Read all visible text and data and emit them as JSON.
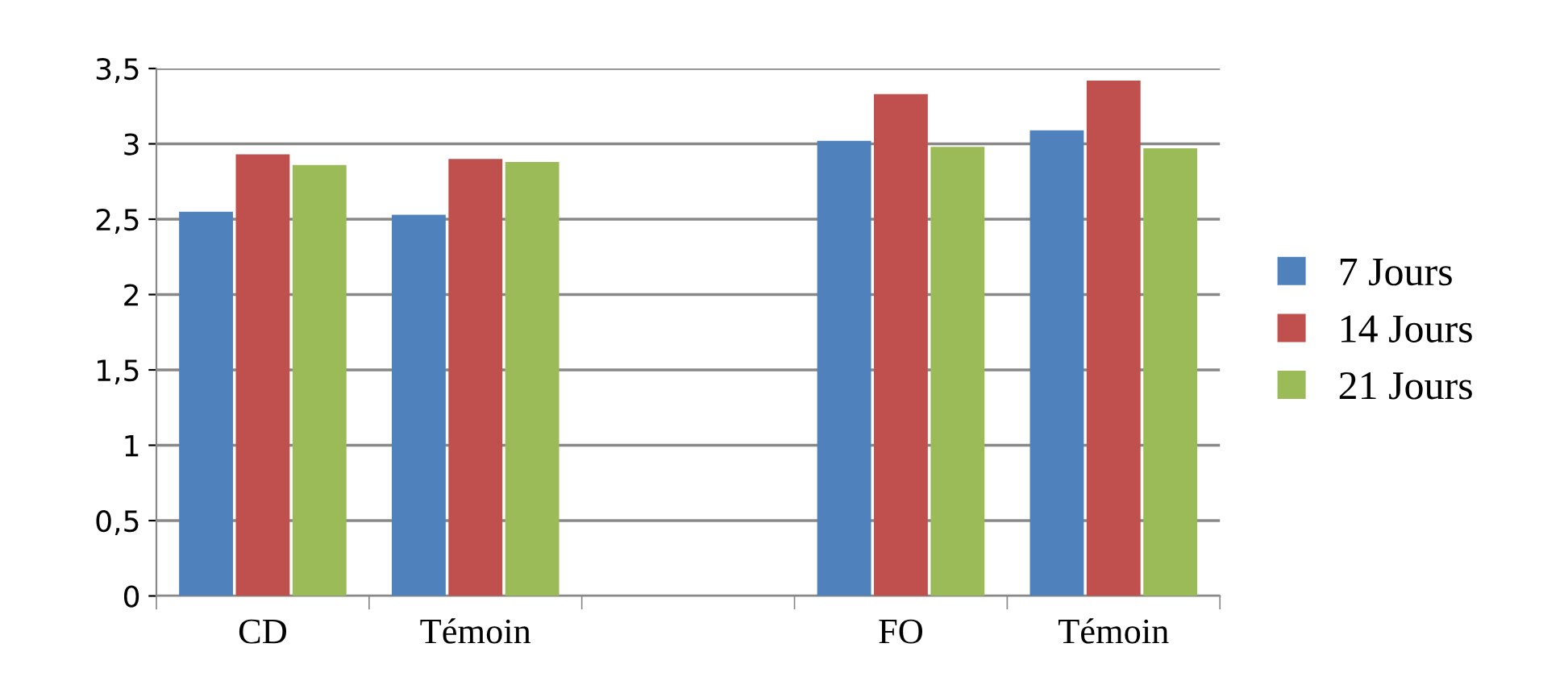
{
  "chart_data": {
    "type": "bar",
    "categories": [
      "CD",
      "Témoin",
      null,
      "FO",
      "Témoin"
    ],
    "series": [
      {
        "name": "7 Jours",
        "color": "#4f81bd",
        "values": [
          2.55,
          2.53,
          null,
          3.02,
          3.09
        ]
      },
      {
        "name": "14 Jours",
        "color": "#c0504d",
        "values": [
          2.93,
          2.9,
          null,
          3.33,
          3.42
        ]
      },
      {
        "name": "21 Jours",
        "color": "#9bbb59",
        "values": [
          2.86,
          2.88,
          null,
          2.98,
          2.97
        ]
      }
    ],
    "ylim": [
      0,
      3.5
    ],
    "yticks": [
      {
        "value": 0,
        "label": "0"
      },
      {
        "value": 0.5,
        "label": "0,5"
      },
      {
        "value": 1,
        "label": "1"
      },
      {
        "value": 1.5,
        "label": "1,5"
      },
      {
        "value": 2,
        "label": "2"
      },
      {
        "value": 2.5,
        "label": "2,5"
      },
      {
        "value": 3,
        "label": "3"
      },
      {
        "value": 3.5,
        "label": "3,5"
      }
    ],
    "grid": "y",
    "legend": "right"
  }
}
